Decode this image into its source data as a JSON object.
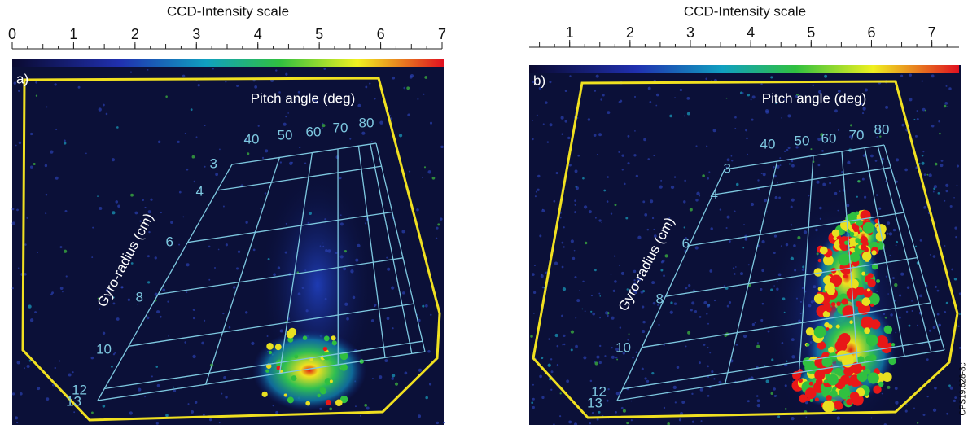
{
  "panels": [
    {
      "scale_title": "CCD-Intensity scale",
      "scale_lim": [
        0,
        7
      ],
      "scale_ticks": [
        0,
        1,
        2,
        3,
        4,
        5,
        6,
        7
      ],
      "label": "a)",
      "pitch_axis_label": "Pitch angle (deg)",
      "pitch_labels": [
        "40",
        "50",
        "60",
        "70",
        "80"
      ],
      "gyro_axis_label": "Gyro-radius (cm)",
      "gyro_labels": [
        "3",
        "4",
        "6",
        "8",
        "10",
        "12",
        "13"
      ]
    },
    {
      "scale_title": "CCD-Intensity scale",
      "scale_lim": [
        0.33,
        7.45
      ],
      "scale_ticks": [
        1,
        2,
        3,
        4,
        5,
        6,
        7
      ],
      "label": "b)",
      "pitch_axis_label": "Pitch angle (deg)",
      "pitch_labels": [
        "40",
        "50",
        "60",
        "70",
        "80"
      ],
      "gyro_axis_label": "Gyro-radius (cm)",
      "gyro_labels": [
        "3",
        "4",
        "6",
        "8",
        "10",
        "12",
        "13"
      ]
    }
  ],
  "credit": "CPS19.628-8c"
}
